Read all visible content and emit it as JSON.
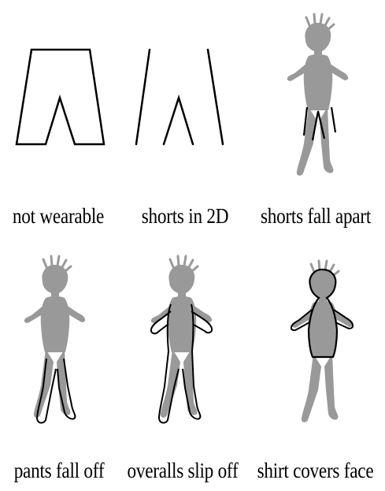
{
  "panels": [
    {
      "id": "not-wearable",
      "caption": "not wearable"
    },
    {
      "id": "shorts-2d",
      "caption": "shorts in 2D"
    },
    {
      "id": "shorts-fall-apart",
      "caption": "shorts fall apart"
    },
    {
      "id": "pants-fall-off",
      "caption": "pants fall off"
    },
    {
      "id": "overalls-slip-off",
      "caption": "overalls slip off"
    },
    {
      "id": "shirt-covers-face",
      "caption": "shirt covers face"
    }
  ],
  "colors": {
    "figure": "#999999",
    "outline": "#000000",
    "background": "#ffffff"
  }
}
